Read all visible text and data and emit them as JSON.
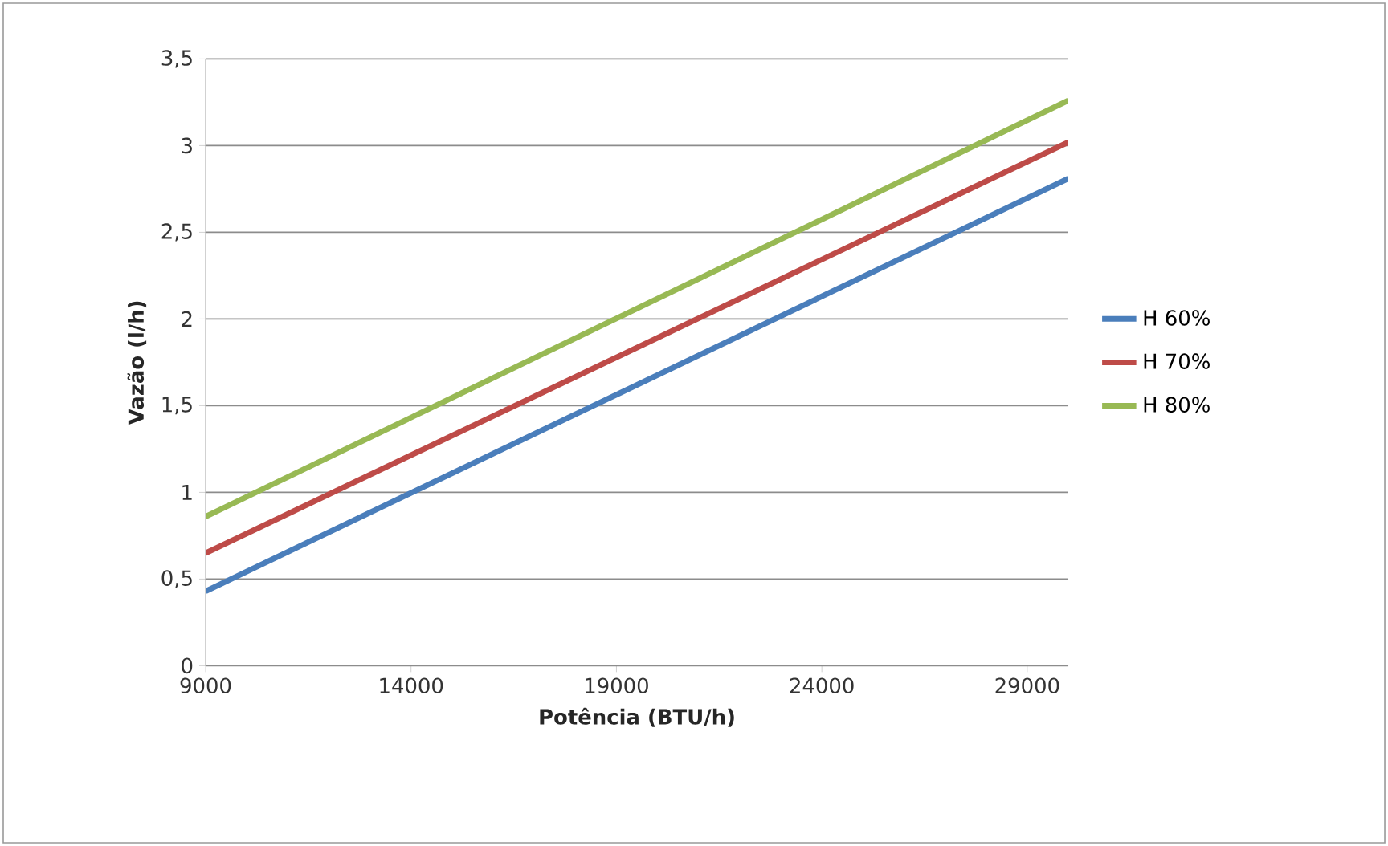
{
  "chart_data": {
    "type": "line",
    "xlabel": "Potência (BTU/h)",
    "ylabel": "Vazão (l/h)",
    "x": [
      9000,
      30000
    ],
    "series": [
      {
        "name": "H 60%",
        "color": "#4a7ebb",
        "values": [
          0.43,
          2.81
        ]
      },
      {
        "name": "H 70%",
        "color": "#be4b48",
        "values": [
          0.65,
          3.02
        ]
      },
      {
        "name": "H 80%",
        "color": "#98b954",
        "values": [
          0.86,
          3.26
        ]
      }
    ],
    "xlim": [
      9000,
      30000
    ],
    "ylim": [
      0,
      3.5
    ],
    "xticks": [
      9000,
      14000,
      19000,
      24000,
      29000
    ],
    "yticks": [
      0,
      {
        "value": 0.5,
        "label": "0,5"
      },
      1,
      {
        "value": 1.5,
        "label": "1,5"
      },
      2,
      {
        "value": 2.5,
        "label": "2,5"
      },
      3,
      {
        "value": 3.5,
        "label": "3,5"
      }
    ],
    "grid": "y",
    "legend": "right",
    "marker": "none",
    "line_style": "solid"
  }
}
